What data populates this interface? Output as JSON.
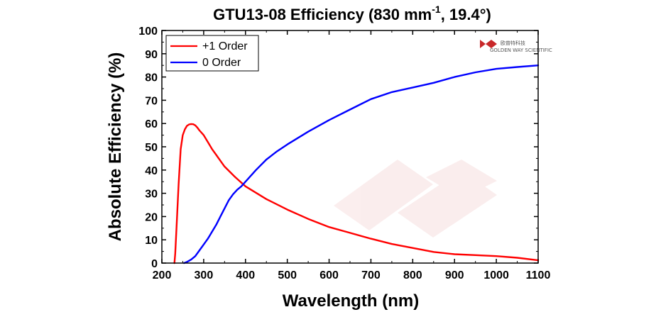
{
  "chart_data": {
    "type": "line",
    "title": "GTU13-08 Efficiency (830 mm",
    "title_superscript": "-1",
    "title_suffix": ", 19.4°)",
    "xlabel": "Wavelength (nm)",
    "ylabel": "Absolute Efficiency (%)",
    "xlim": [
      200,
      1100
    ],
    "ylim": [
      0,
      100
    ],
    "x_ticks": [
      200,
      300,
      400,
      500,
      600,
      700,
      800,
      900,
      1000,
      1100
    ],
    "y_ticks": [
      0,
      10,
      20,
      30,
      40,
      50,
      60,
      70,
      80,
      90,
      100
    ],
    "grid": false,
    "legend_position": "top-left",
    "series": [
      {
        "name": "+1 Order",
        "color": "#ff0000",
        "x": [
          230,
          232,
          235,
          240,
          245,
          250,
          255,
          260,
          265,
          270,
          275,
          280,
          285,
          290,
          300,
          310,
          320,
          330,
          340,
          350,
          375,
          400,
          450,
          500,
          550,
          600,
          650,
          700,
          750,
          800,
          850,
          900,
          950,
          1000,
          1050,
          1100
        ],
        "y": [
          0,
          4,
          15,
          34,
          49,
          55,
          57.5,
          59,
          59.6,
          59.8,
          59.7,
          59.2,
          58.2,
          57,
          55,
          52,
          49,
          46.5,
          44,
          41.5,
          37,
          33,
          27.5,
          23,
          19,
          15.5,
          13,
          10.5,
          8.2,
          6.5,
          4.8,
          3.8,
          3.4,
          3.0,
          2.3,
          1.2
        ]
      },
      {
        "name": "0 Order",
        "color": "#0000ff",
        "x": [
          253,
          260,
          270,
          280,
          290,
          300,
          310,
          320,
          330,
          340,
          350,
          360,
          370,
          380,
          390,
          400,
          425,
          450,
          475,
          500,
          550,
          600,
          650,
          700,
          750,
          800,
          850,
          900,
          950,
          1000,
          1050,
          1100
        ],
        "y": [
          0,
          0.5,
          1.5,
          3,
          5.5,
          8,
          10.5,
          13.5,
          16.5,
          20,
          23.5,
          27,
          29.5,
          31.5,
          33,
          35,
          40,
          44.5,
          48,
          51,
          56.5,
          61.5,
          66,
          70.5,
          73.5,
          75.5,
          77.5,
          80,
          82,
          83.5,
          84.3,
          85
        ]
      }
    ]
  },
  "watermark": {
    "logo_text": "欧普特科技",
    "logo_subtext": "GOLDEN WAY SCIENTIFIC",
    "color": "#c8282a"
  }
}
